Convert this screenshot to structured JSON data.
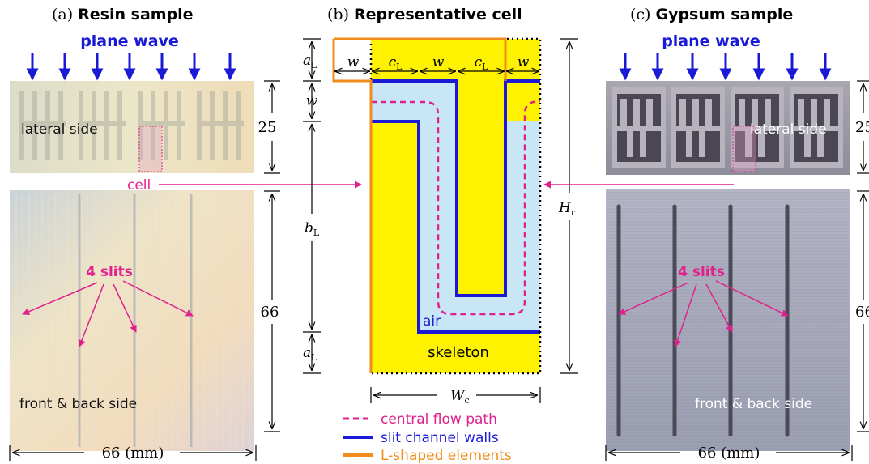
{
  "panels": {
    "a": {
      "label": "(a)",
      "title": "Resin sample"
    },
    "b": {
      "label": "(b)",
      "title": "Representative cell"
    },
    "c": {
      "label": "(c)",
      "title": "Gypsum sample"
    }
  },
  "photo_labels": {
    "plane_wave": "plane wave",
    "lateral_side": "lateral side",
    "front_back_side": "front & back side",
    "cell": "cell",
    "four_slits": "4 slits"
  },
  "dims": {
    "height_top": "25",
    "height_front": "66",
    "width_bottom": "66 (mm)"
  },
  "cell_dims": {
    "aL": "a",
    "aL_sub": "L",
    "w": "w",
    "cL": "c",
    "cL_sub": "L",
    "bL": "b",
    "bL_sub": "L",
    "Hr": "H",
    "Hr_sub": "r",
    "Wc": "W",
    "Wc_sub": "c"
  },
  "cell_labels": {
    "air": "air",
    "skeleton": "skeleton"
  },
  "legend": [
    {
      "label": "central flow path",
      "color": "#e0208c",
      "style": "dashed"
    },
    {
      "label": "slit channel walls",
      "color": "#1a1ad6",
      "style": "solid"
    },
    {
      "label": "L-shaped elements",
      "color": "#f08c1a",
      "style": "solid"
    }
  ],
  "colors": {
    "skeleton": "#fff200",
    "air": "#c8e6f5",
    "walls": "#1a1ad6",
    "flow": "#e0208c",
    "lshape": "#f08c1a",
    "wave": "#1a1ad6",
    "annot": "#e0208c"
  }
}
